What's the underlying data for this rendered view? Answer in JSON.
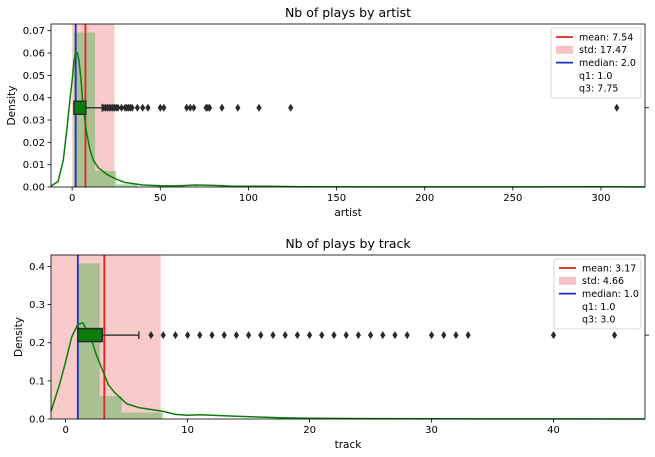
{
  "chart_data": [
    {
      "type": "histogram+kde+boxplot",
      "title": "Nb of plays by artist",
      "xlabel": "artist",
      "ylabel": "Density",
      "xlim": [
        -12,
        325
      ],
      "ylim": [
        0,
        0.073
      ],
      "xticks": [
        0,
        50,
        100,
        150,
        200,
        250,
        300
      ],
      "yticks": [
        0.0,
        0.01,
        0.02,
        0.03,
        0.04,
        0.05,
        0.06,
        0.07
      ],
      "ytick_labels": [
        "0.00",
        "0.01",
        "0.02",
        "0.03",
        "0.04",
        "0.05",
        "0.06",
        "0.07"
      ],
      "legend_position": "top-right",
      "legend": [
        "mean: 7.54",
        "std: 17.47",
        "median: 2.0",
        "q1: 1.0",
        "q3: 7.75"
      ],
      "stats": {
        "mean": 7.54,
        "std": 17.47,
        "median": 2.0,
        "q1": 1.0,
        "q3": 7.75
      },
      "box_y": 0.0355,
      "whisker_high": 17,
      "fliers": [
        18,
        19,
        20,
        21,
        22,
        23,
        24,
        25,
        26,
        28,
        30,
        31,
        32,
        33,
        34,
        37,
        40,
        43,
        50,
        52,
        65,
        67,
        69,
        76,
        77,
        78,
        85,
        94,
        106,
        124,
        309
      ],
      "hist_bins": [
        {
          "x0": 1,
          "x1": 13,
          "value": 0.0692
        },
        {
          "x0": 13,
          "x1": 25,
          "value": 0.0072
        },
        {
          "x0": 25,
          "x1": 37,
          "value": 0.0012
        }
      ],
      "std_band": [
        0,
        24
      ],
      "kde": [
        [
          -12,
          0.0004
        ],
        [
          -8,
          0.0025
        ],
        [
          -5,
          0.012
        ],
        [
          -3,
          0.026
        ],
        [
          -1,
          0.041
        ],
        [
          0,
          0.048
        ],
        [
          1,
          0.056
        ],
        [
          2,
          0.0605
        ],
        [
          3,
          0.06
        ],
        [
          4,
          0.056
        ],
        [
          5,
          0.048
        ],
        [
          6,
          0.038
        ],
        [
          8,
          0.025
        ],
        [
          10,
          0.017
        ],
        [
          12,
          0.012
        ],
        [
          15,
          0.0085
        ],
        [
          20,
          0.0055
        ],
        [
          25,
          0.0035
        ],
        [
          30,
          0.002
        ],
        [
          40,
          0.0009
        ],
        [
          50,
          0.0006
        ],
        [
          60,
          0.0005
        ],
        [
          70,
          0.0009
        ],
        [
          80,
          0.0007
        ],
        [
          90,
          0.0004
        ],
        [
          110,
          0.0003
        ],
        [
          130,
          0.0001
        ],
        [
          200,
          5e-05
        ],
        [
          300,
          8e-05
        ],
        [
          325,
          5e-05
        ]
      ],
      "colors": {
        "mean": "#e3231c",
        "std": "#f7b3b3",
        "median": "#1f2ccf",
        "hist": "#5cb85c",
        "kde": "#0a7d0a",
        "box": "#0a7d0a"
      }
    },
    {
      "type": "histogram+kde+boxplot",
      "title": "Nb of plays by track",
      "xlabel": "track",
      "ylabel": "Density",
      "xlim": [
        -1.2,
        47.5
      ],
      "ylim": [
        0,
        0.43
      ],
      "xticks": [
        0,
        10,
        20,
        30,
        40
      ],
      "yticks": [
        0.0,
        0.1,
        0.2,
        0.3,
        0.4
      ],
      "ytick_labels": [
        "0.0",
        "0.1",
        "0.2",
        "0.3",
        "0.4"
      ],
      "legend_position": "top-right",
      "legend": [
        "mean: 3.17",
        "std: 4.66",
        "median: 1.0",
        "q1: 1.0",
        "q3: 3.0"
      ],
      "stats": {
        "mean": 3.17,
        "std": 4.66,
        "median": 1.0,
        "q1": 1.0,
        "q3": 3.0
      },
      "box_y": 0.22,
      "whisker_high": 6,
      "fliers": [
        7,
        8,
        9,
        10,
        11,
        12,
        13,
        14,
        15,
        16,
        17,
        18,
        19,
        20,
        21,
        22,
        23,
        24,
        25,
        26,
        27,
        28,
        30,
        31,
        32,
        33,
        40,
        45
      ],
      "hist_bins": [
        {
          "x0": 1,
          "x1": 2.8,
          "value": 0.408
        },
        {
          "x0": 2.8,
          "x1": 4.6,
          "value": 0.06
        },
        {
          "x0": 4.6,
          "x1": 8,
          "value": 0.017
        }
      ],
      "std_band": [
        -1.2,
        7.8
      ],
      "kde": [
        [
          -1.2,
          0.02
        ],
        [
          -0.5,
          0.09
        ],
        [
          0,
          0.15
        ],
        [
          0.5,
          0.215
        ],
        [
          1,
          0.248
        ],
        [
          1.4,
          0.252
        ],
        [
          2,
          0.22
        ],
        [
          2.5,
          0.17
        ],
        [
          3,
          0.13
        ],
        [
          3.5,
          0.09
        ],
        [
          4,
          0.07
        ],
        [
          5,
          0.04
        ],
        [
          6,
          0.03
        ],
        [
          7,
          0.025
        ],
        [
          8,
          0.02
        ],
        [
          9,
          0.012
        ],
        [
          10,
          0.01
        ],
        [
          11,
          0.011
        ],
        [
          12,
          0.01
        ],
        [
          14,
          0.007
        ],
        [
          16,
          0.005
        ],
        [
          18,
          0.003
        ],
        [
          20,
          0.002
        ],
        [
          25,
          0.001
        ],
        [
          30,
          0.0005
        ],
        [
          35,
          0.0003
        ],
        [
          40,
          0.0002
        ],
        [
          47.5,
          0.0001
        ]
      ],
      "colors": {
        "mean": "#e3231c",
        "std": "#f7b3b3",
        "median": "#1f2ccf",
        "hist": "#5cb85c",
        "kde": "#0a7d0a",
        "box": "#0a7d0a"
      }
    }
  ]
}
